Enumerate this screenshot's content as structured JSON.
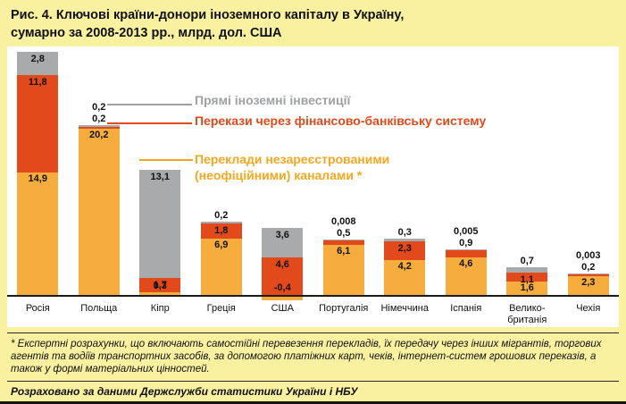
{
  "title": {
    "line1": "Рис. 4. Ключові країни-донори іноземного капіталу в Україну,",
    "line2": "сумарно за 2008-2013 рр., млрд. дол. США"
  },
  "legend": [
    {
      "key": "fdi",
      "label": "Прямі іноземні інвестиції",
      "color": "#9EA0A2"
    },
    {
      "key": "bank",
      "label": "Перекази через фінансово-банківську систему",
      "color": "#E2491B"
    },
    {
      "key": "unofficial",
      "label": "Переклади незареєстрованими (неофіційними) каналами *",
      "color": "#F5A71F"
    }
  ],
  "chart_data": {
    "type": "bar",
    "stacked": true,
    "title": "Ключові країни-донори іноземного капіталу в Україну, сумарно за 2008-2013 рр.",
    "unit": "млрд. дол. США",
    "categories": [
      "Росія",
      "Польща",
      "Кіпр",
      "Греція",
      "США",
      "Португалія",
      "Німеччина",
      "Іспанія",
      "Велико-британія",
      "Чехія"
    ],
    "series": [
      {
        "key": "fdi",
        "name": "Прямі іноземні інвестиції",
        "color": "#A8AAAC",
        "values": [
          2.8,
          0.2,
          13.1,
          0.2,
          3.6,
          0.008,
          0.3,
          0.005,
          0.7,
          0.003
        ],
        "labels": [
          "2,8",
          "0,2",
          "13,1",
          "0,2",
          "3,6",
          "0,008",
          "0,3",
          "0,005",
          "0,7",
          "0,003"
        ]
      },
      {
        "key": "bank",
        "name": "Перекази через фінансово-банківську систему",
        "color": "#E2491B",
        "values": [
          11.8,
          0.2,
          1.7,
          1.8,
          4.6,
          0.5,
          2.3,
          0.9,
          1.1,
          0.2
        ],
        "labels": [
          "11,8",
          "0,2",
          "1,7",
          "1,8",
          "4,6",
          "0,5",
          "2,3",
          "0,9",
          "1,1",
          "0,2"
        ]
      },
      {
        "key": "unofficial",
        "name": "Переклади незареєстрованими (неофіційними) каналами",
        "color": "#F6AD3E",
        "values": [
          14.9,
          20.2,
          0.3,
          6.9,
          -0.4,
          6.1,
          4.2,
          4.6,
          1.6,
          2.3
        ],
        "labels": [
          "14,9",
          "20,2",
          "0,3",
          "6,9",
          "-0,4",
          "6,1",
          "4,2",
          "4,6",
          "1,6",
          "2,3"
        ]
      }
    ],
    "ylim": [
      -1,
      30
    ],
    "grid": false,
    "legend_position": "upper-center-inside"
  },
  "footnote": "* Експертні розрахунки, що включають самостійні перевезення перекладів, їх передачу через інших мігрантів, торгових агентів та водіїв транспортних засобів, за допомогою платіжних карт, чеків, інтернет-систем грошових переказів, а також у формі матеріальних цінностей.",
  "source": "Розраховано за даними Держслужби статистики України і НБУ"
}
